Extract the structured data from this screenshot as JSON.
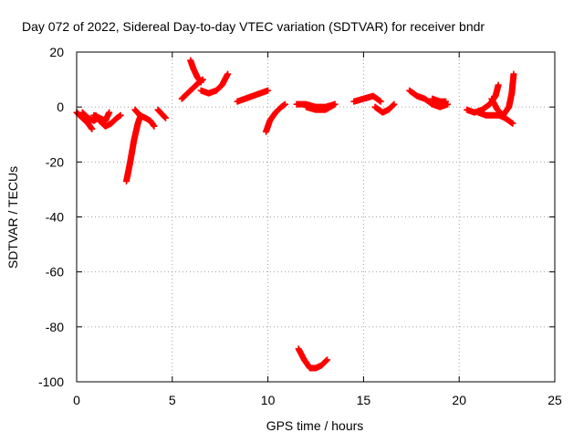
{
  "chart_data": {
    "type": "scatter",
    "title": "Day 072 of 2022, Sidereal Day-to-day VTEC variation (SDTVAR) for receiver bndr",
    "xlabel": "GPS time / hours",
    "ylabel": "SDTVAR / TECUs",
    "xlim": [
      0,
      25
    ],
    "ylim": [
      -100,
      20
    ],
    "x_ticks": [
      0,
      5,
      10,
      15,
      20,
      25
    ],
    "y_ticks": [
      20,
      0,
      -20,
      -40,
      -60,
      -80,
      -100
    ],
    "grid": true,
    "grid_style": "dotted",
    "marker": "+",
    "series": [
      {
        "name": "",
        "color": "#ff0000",
        "arcs": [
          [
            [
              0.0,
              -2
            ],
            [
              0.3,
              -4
            ],
            [
              0.6,
              -6
            ],
            [
              0.8,
              -8
            ]
          ],
          [
            [
              0.3,
              -2
            ],
            [
              0.6,
              -4
            ],
            [
              0.9,
              -5
            ],
            [
              1.1,
              -4
            ]
          ],
          [
            [
              0.9,
              -3
            ],
            [
              1.2,
              -4
            ],
            [
              1.5,
              -5
            ],
            [
              1.7,
              -2
            ]
          ],
          [
            [
              1.0,
              -3
            ],
            [
              1.2,
              -5
            ],
            [
              1.5,
              -7
            ],
            [
              1.8,
              -6
            ],
            [
              2.1,
              -4
            ],
            [
              2.3,
              -3
            ]
          ],
          [
            [
              2.6,
              -27
            ],
            [
              2.8,
              -20
            ],
            [
              3.0,
              -12
            ],
            [
              3.2,
              -6
            ],
            [
              3.35,
              -3
            ]
          ],
          [
            [
              3.05,
              -1
            ],
            [
              3.3,
              -3
            ],
            [
              3.6,
              -4
            ],
            [
              3.85,
              -5
            ],
            [
              4.05,
              -7
            ]
          ],
          [
            [
              4.25,
              -1
            ],
            [
              4.45,
              -2.5
            ],
            [
              4.65,
              -4
            ]
          ],
          [
            [
              5.5,
              3
            ],
            [
              5.8,
              5
            ],
            [
              6.1,
              7
            ],
            [
              6.4,
              9
            ],
            [
              6.6,
              10
            ]
          ],
          [
            [
              5.95,
              17
            ],
            [
              6.1,
              14
            ],
            [
              6.3,
              11
            ],
            [
              6.5,
              9
            ]
          ],
          [
            [
              6.5,
              6
            ],
            [
              6.9,
              5
            ],
            [
              7.3,
              6
            ],
            [
              7.6,
              8
            ],
            [
              7.9,
              12
            ]
          ],
          [
            [
              8.4,
              2
            ],
            [
              8.8,
              3
            ],
            [
              9.2,
              4
            ],
            [
              9.6,
              5
            ],
            [
              10.0,
              6
            ]
          ],
          [
            [
              9.9,
              -9
            ],
            [
              10.1,
              -5
            ],
            [
              10.4,
              -2
            ],
            [
              10.7,
              0
            ],
            [
              10.9,
              1
            ]
          ],
          [
            [
              11.5,
              1
            ],
            [
              12.0,
              1
            ],
            [
              12.5,
              0
            ],
            [
              13.0,
              0
            ],
            [
              13.5,
              1
            ]
          ],
          [
            [
              12.0,
              0
            ],
            [
              12.5,
              -1
            ],
            [
              13.0,
              -1
            ],
            [
              13.5,
              1
            ]
          ],
          [
            [
              11.6,
              -88
            ],
            [
              11.9,
              -92
            ],
            [
              12.2,
              -95
            ],
            [
              12.5,
              -95
            ],
            [
              12.8,
              -94
            ],
            [
              13.1,
              -92
            ]
          ],
          [
            [
              14.5,
              2
            ],
            [
              15.0,
              3
            ],
            [
              15.5,
              4
            ],
            [
              15.9,
              2
            ]
          ],
          [
            [
              15.6,
              0
            ],
            [
              16.0,
              -2
            ],
            [
              16.3,
              -1
            ],
            [
              16.6,
              1
            ]
          ],
          [
            [
              17.4,
              6
            ],
            [
              17.8,
              4
            ],
            [
              18.2,
              3
            ],
            [
              18.6,
              1
            ],
            [
              19.0,
              0
            ],
            [
              19.4,
              1
            ]
          ],
          [
            [
              18.6,
              3
            ],
            [
              19.0,
              2
            ],
            [
              19.3,
              2
            ]
          ],
          [
            [
              20.4,
              -1
            ],
            [
              20.8,
              -2
            ],
            [
              21.2,
              -1
            ],
            [
              21.6,
              1
            ],
            [
              21.9,
              4
            ],
            [
              22.05,
              8
            ]
          ],
          [
            [
              21.0,
              -2
            ],
            [
              21.4,
              -3
            ],
            [
              21.8,
              -3
            ],
            [
              22.1,
              -3
            ],
            [
              22.4,
              -4
            ],
            [
              22.8,
              -6
            ]
          ],
          [
            [
              21.7,
              3
            ],
            [
              22.0,
              -1
            ],
            [
              22.3,
              -3
            ],
            [
              22.6,
              0
            ],
            [
              22.75,
              5
            ],
            [
              22.85,
              12
            ]
          ]
        ]
      }
    ]
  }
}
